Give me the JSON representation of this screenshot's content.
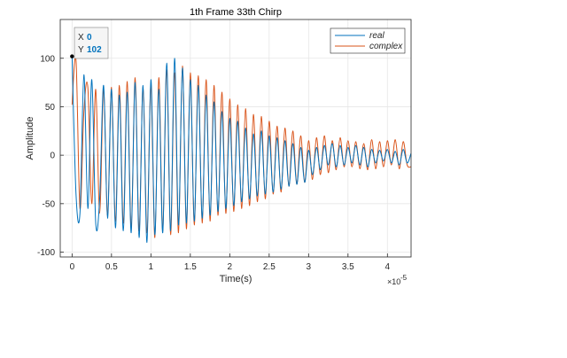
{
  "chart_data": {
    "type": "line",
    "title": "1th Frame 33th Chirp",
    "xlabel": "Time(s)",
    "ylabel": "Amplitude",
    "x_exponent_label": "×10",
    "x_exponent_power": "-5",
    "xlim": [
      -0.15,
      4.3
    ],
    "ylim": [
      -105,
      140
    ],
    "xticks": [
      0,
      0.5,
      1,
      1.5,
      2,
      2.5,
      3,
      3.5,
      4
    ],
    "xtick_labels": [
      "0",
      "0.5",
      "1",
      "1.5",
      "2",
      "2.5",
      "3",
      "3.5",
      "4"
    ],
    "yticks": [
      -100,
      -50,
      0,
      50,
      100
    ],
    "ytick_labels": [
      "-100",
      "-50",
      "0",
      "50",
      "100"
    ],
    "grid": true,
    "legend_position": "top-right",
    "series": [
      {
        "name": "real",
        "color": "#0072BD",
        "x": [
          0,
          0.05,
          0.1,
          0.15,
          0.2,
          0.25,
          0.3,
          0.35,
          0.4,
          0.45,
          0.5,
          0.55,
          0.6,
          0.65,
          0.7,
          0.75,
          0.8,
          0.85,
          0.9,
          0.95,
          1.0,
          1.05,
          1.1,
          1.15,
          1.2,
          1.25,
          1.3,
          1.35,
          1.4,
          1.45,
          1.5,
          1.55,
          1.6,
          1.65,
          1.7,
          1.75,
          1.8,
          1.85,
          1.9,
          1.95,
          2.0,
          2.05,
          2.1,
          2.15,
          2.2,
          2.25,
          2.3,
          2.35,
          2.4,
          2.45,
          2.5,
          2.55,
          2.6,
          2.65,
          2.7,
          2.75,
          2.8,
          2.85,
          2.9,
          2.95,
          3.0,
          3.05,
          3.1,
          3.15,
          3.2,
          3.25,
          3.3,
          3.35,
          3.4,
          3.45,
          3.5,
          3.55,
          3.6,
          3.65,
          3.7,
          3.75,
          3.8,
          3.85,
          3.9,
          3.95,
          4.0,
          4.05,
          4.1,
          4.15,
          4.2,
          4.25,
          4.3
        ],
        "y": [
          102,
          -40,
          -60,
          83,
          -55,
          78,
          -70,
          -45,
          72,
          -65,
          68,
          -75,
          62,
          -78,
          65,
          -80,
          75,
          -85,
          72,
          -90,
          78,
          -82,
          68,
          -80,
          95,
          -78,
          100,
          -72,
          90,
          -70,
          78,
          -68,
          72,
          -65,
          62,
          -62,
          55,
          -58,
          45,
          -55,
          38,
          -52,
          35,
          -48,
          28,
          -45,
          22,
          -42,
          25,
          -40,
          20,
          -38,
          18,
          -35,
          15,
          -32,
          12,
          -30,
          8,
          -28,
          5,
          -20,
          8,
          -15,
          10,
          -10,
          12,
          -12,
          10,
          -10,
          8,
          -8,
          10,
          -10,
          8,
          -12,
          6,
          -8,
          5,
          -6,
          6,
          -8,
          4,
          -10,
          6,
          -8,
          2
        ]
      },
      {
        "name": "complex",
        "color": "#D95319",
        "x": [
          0,
          0.05,
          0.1,
          0.15,
          0.2,
          0.25,
          0.3,
          0.35,
          0.4,
          0.45,
          0.5,
          0.55,
          0.6,
          0.65,
          0.7,
          0.75,
          0.8,
          0.85,
          0.9,
          0.95,
          1.0,
          1.05,
          1.1,
          1.15,
          1.2,
          1.25,
          1.3,
          1.35,
          1.4,
          1.45,
          1.5,
          1.55,
          1.6,
          1.65,
          1.7,
          1.75,
          1.8,
          1.85,
          1.9,
          1.95,
          2.0,
          2.05,
          2.1,
          2.15,
          2.2,
          2.25,
          2.3,
          2.35,
          2.4,
          2.45,
          2.5,
          2.55,
          2.6,
          2.65,
          2.7,
          2.75,
          2.8,
          2.85,
          2.9,
          2.95,
          3.0,
          3.05,
          3.1,
          3.15,
          3.2,
          3.25,
          3.3,
          3.35,
          3.4,
          3.45,
          3.5,
          3.55,
          3.6,
          3.65,
          3.7,
          3.75,
          3.8,
          3.85,
          3.9,
          3.95,
          4.0,
          4.05,
          4.1,
          4.15,
          4.2,
          4.25,
          4.3
        ],
        "y": [
          52,
          98,
          -55,
          45,
          70,
          -50,
          68,
          -60,
          68,
          -62,
          70,
          -68,
          72,
          -70,
          76,
          -75,
          80,
          -78,
          70,
          -80,
          72,
          -85,
          80,
          -78,
          88,
          -82,
          85,
          -80,
          92,
          -76,
          85,
          -72,
          82,
          -70,
          78,
          -68,
          72,
          -62,
          65,
          -60,
          58,
          -58,
          52,
          -55,
          48,
          -52,
          42,
          -48,
          40,
          -45,
          35,
          -40,
          30,
          -38,
          28,
          -32,
          25,
          -30,
          20,
          -28,
          15,
          -25,
          18,
          -20,
          20,
          -18,
          15,
          -15,
          18,
          -12,
          15,
          -12,
          14,
          -14,
          12,
          -15,
          16,
          -14,
          14,
          -12,
          15,
          -10,
          16,
          -14,
          14,
          -10,
          -12
        ]
      }
    ],
    "datatip": {
      "x_label": "X",
      "x_value": "0",
      "y_label": "Y",
      "y_value": "102",
      "point": [
        0,
        102
      ]
    }
  }
}
